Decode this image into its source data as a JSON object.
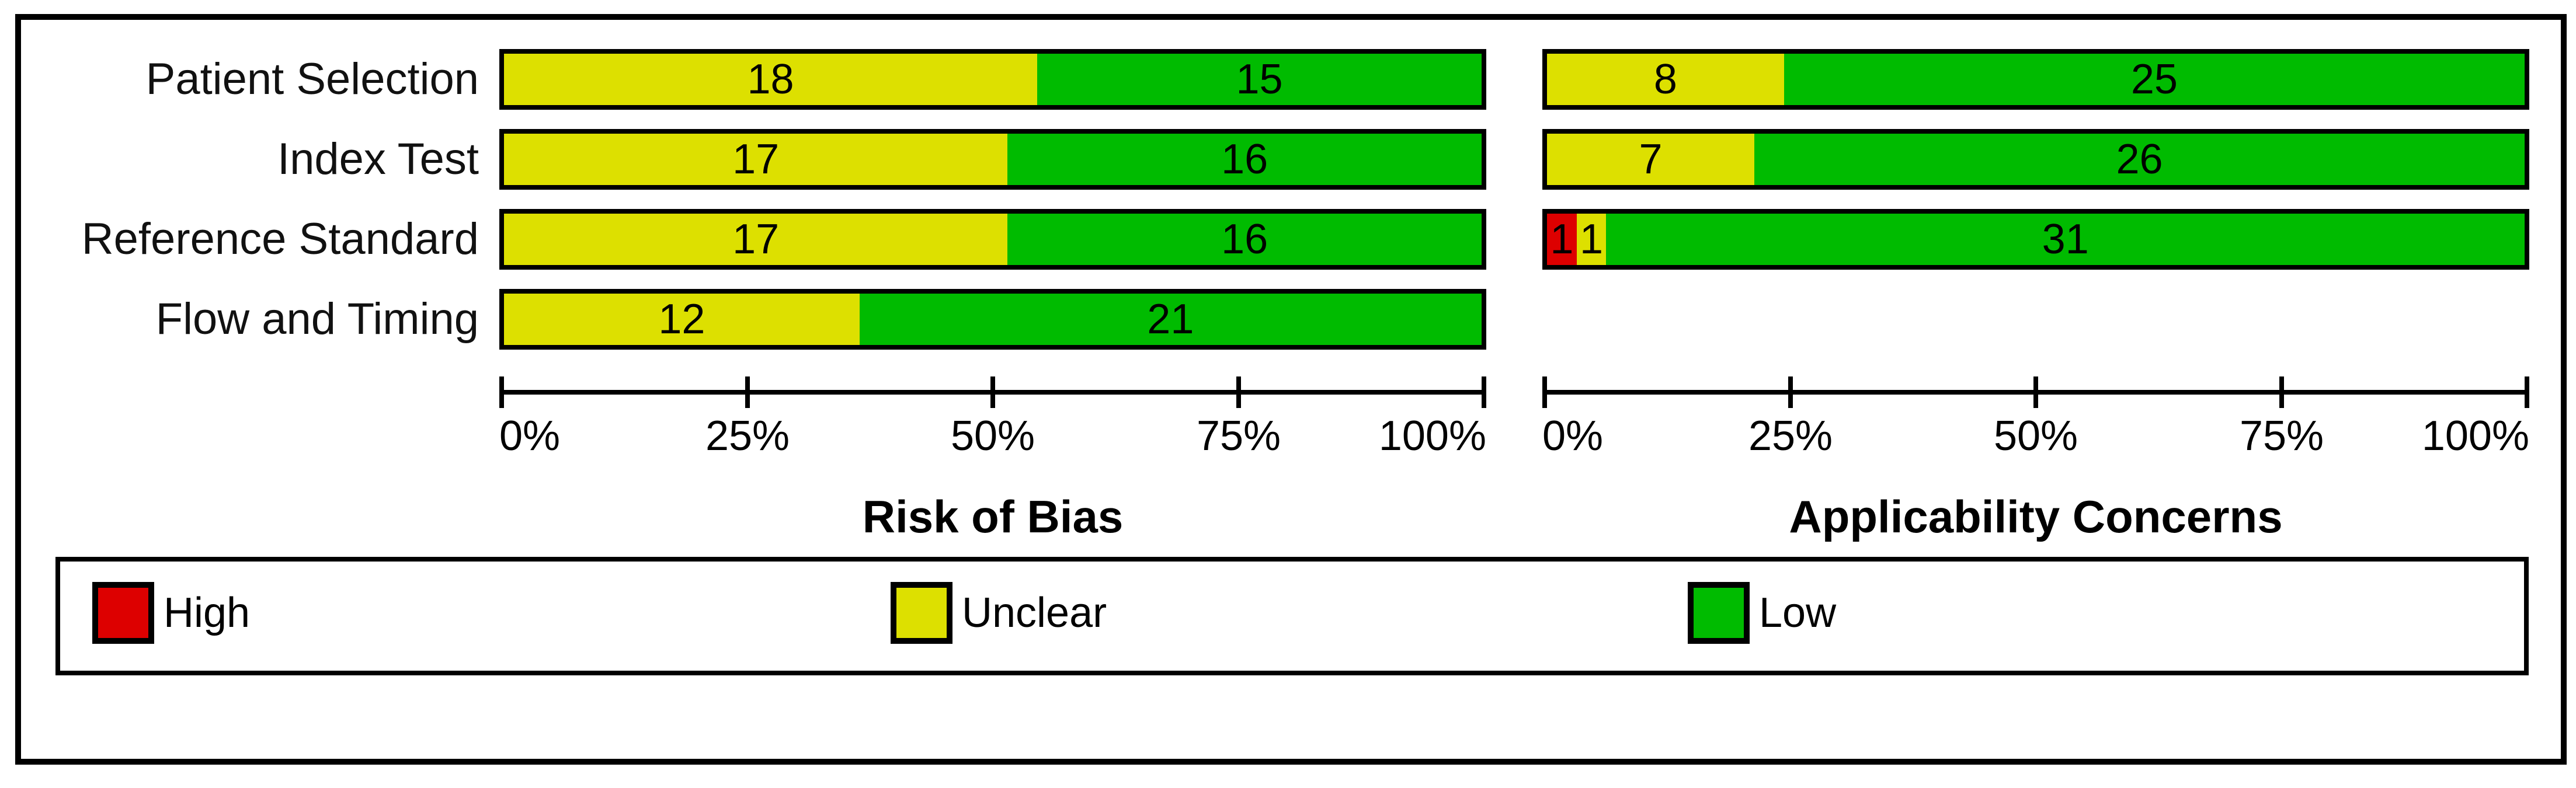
{
  "chart_data": {
    "type": "bar",
    "orientation": "horizontal-stacked",
    "categories": [
      "Patient Selection",
      "Index Test",
      "Reference Standard",
      "Flow and Timing"
    ],
    "x_ticks": [
      "0%",
      "25%",
      "50%",
      "75%",
      "100%"
    ],
    "x_range": [
      0,
      100
    ],
    "grid": false,
    "legend_position": "bottom-box",
    "legend": [
      {
        "label": "High",
        "color": "#dd0000"
      },
      {
        "label": "Unclear",
        "color": "#dde000"
      },
      {
        "label": "Low",
        "color": "#00bb00"
      }
    ],
    "panels": [
      {
        "title": "Risk of Bias",
        "total_per_row": 33,
        "rows": [
          {
            "category": "Patient Selection",
            "segments": [
              {
                "level": "Unclear",
                "value": 18
              },
              {
                "level": "Low",
                "value": 15
              }
            ]
          },
          {
            "category": "Index Test",
            "segments": [
              {
                "level": "Unclear",
                "value": 17
              },
              {
                "level": "Low",
                "value": 16
              }
            ]
          },
          {
            "category": "Reference Standard",
            "segments": [
              {
                "level": "Unclear",
                "value": 17
              },
              {
                "level": "Low",
                "value": 16
              }
            ]
          },
          {
            "category": "Flow and Timing",
            "segments": [
              {
                "level": "Unclear",
                "value": 12
              },
              {
                "level": "Low",
                "value": 21
              }
            ]
          }
        ]
      },
      {
        "title": "Applicability Concerns",
        "total_per_row": 33,
        "rows": [
          {
            "category": "Patient Selection",
            "segments": [
              {
                "level": "Unclear",
                "value": 8
              },
              {
                "level": "Low",
                "value": 25
              }
            ]
          },
          {
            "category": "Index Test",
            "segments": [
              {
                "level": "Unclear",
                "value": 7
              },
              {
                "level": "Low",
                "value": 26
              }
            ]
          },
          {
            "category": "Reference Standard",
            "segments": [
              {
                "level": "High",
                "value": 1
              },
              {
                "level": "Unclear",
                "value": 1
              },
              {
                "level": "Low",
                "value": 31
              }
            ]
          },
          {
            "category": "Flow and Timing",
            "segments": []
          }
        ]
      }
    ]
  },
  "colors": {
    "High": "#dd0000",
    "Unclear": "#dde000",
    "Low": "#00bb00",
    "border": "#000000",
    "background": "#ffffff"
  }
}
